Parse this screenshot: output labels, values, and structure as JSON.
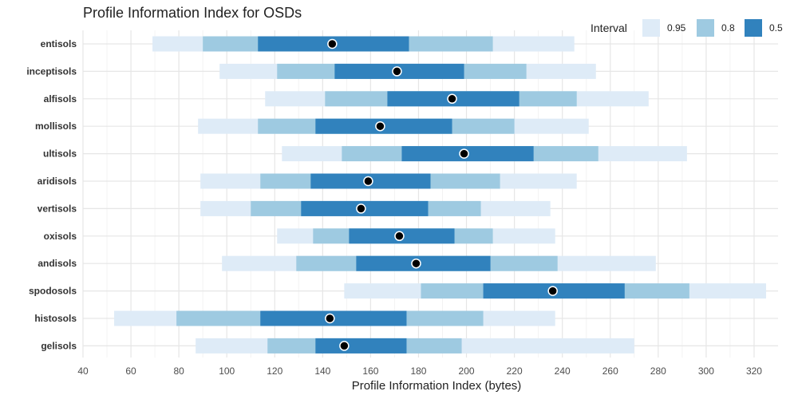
{
  "chart_data": {
    "type": "interval",
    "title": "Profile Information Index for OSDs",
    "xlabel": "Profile Information Index (bytes)",
    "ylabel": "",
    "xlim": [
      40,
      330
    ],
    "x_ticks": [
      40,
      60,
      80,
      100,
      120,
      140,
      160,
      180,
      200,
      220,
      240,
      260,
      280,
      300,
      320
    ],
    "grid": true,
    "legend": {
      "title": "Interval",
      "placement": "top-right",
      "entries": [
        {
          "label": "0.95",
          "color": "#deebf7"
        },
        {
          "label": "0.8",
          "color": "#9ecae1"
        },
        {
          "label": "0.5",
          "color": "#3182bd"
        }
      ]
    },
    "categories": [
      "entisols",
      "inceptisols",
      "alfisols",
      "mollisols",
      "ultisols",
      "aridisols",
      "vertisols",
      "oxisols",
      "andisols",
      "spodosols",
      "histosols",
      "gelisols"
    ],
    "series": [
      {
        "name": "0.95",
        "intervals": [
          [
            69,
            245
          ],
          [
            97,
            254
          ],
          [
            116,
            276
          ],
          [
            88,
            251
          ],
          [
            123,
            292
          ],
          [
            89,
            246
          ],
          [
            89,
            235
          ],
          [
            121,
            237
          ],
          [
            98,
            279
          ],
          [
            149,
            325
          ],
          [
            53,
            237
          ],
          [
            87,
            270
          ]
        ]
      },
      {
        "name": "0.8",
        "intervals": [
          [
            90,
            211
          ],
          [
            121,
            225
          ],
          [
            141,
            246
          ],
          [
            113,
            220
          ],
          [
            148,
            255
          ],
          [
            114,
            214
          ],
          [
            110,
            206
          ],
          [
            136,
            211
          ],
          [
            129,
            238
          ],
          [
            181,
            293
          ],
          [
            79,
            207
          ],
          [
            117,
            198
          ]
        ]
      },
      {
        "name": "0.5",
        "intervals": [
          [
            113,
            176
          ],
          [
            145,
            199
          ],
          [
            167,
            222
          ],
          [
            137,
            194
          ],
          [
            173,
            228
          ],
          [
            135,
            185
          ],
          [
            131,
            184
          ],
          [
            151,
            195
          ],
          [
            154,
            210
          ],
          [
            207,
            266
          ],
          [
            114,
            175
          ],
          [
            137,
            175
          ]
        ]
      }
    ],
    "points": [
      144,
      171,
      194,
      164,
      199,
      159,
      156,
      172,
      179,
      236,
      143,
      149
    ]
  }
}
